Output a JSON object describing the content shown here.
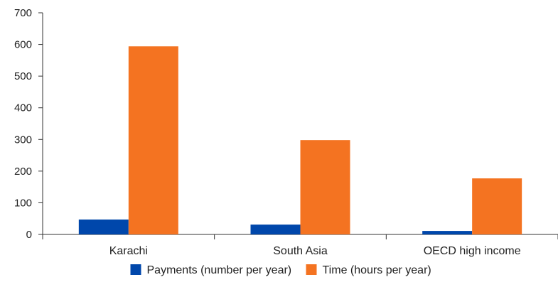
{
  "chart_data": {
    "type": "bar",
    "title": "",
    "xlabel": "",
    "ylabel": "",
    "categories": [
      "Karachi",
      "South Asia",
      "OECD high income"
    ],
    "series": [
      {
        "name": "Payments (number per year)",
        "color": "#0047AB",
        "values": [
          47,
          31,
          11
        ]
      },
      {
        "name": "Time (hours per year)",
        "color": "#F47321",
        "values": [
          594,
          298,
          177
        ]
      }
    ],
    "ylim": [
      0,
      700
    ],
    "yticks": [
      0,
      100,
      200,
      300,
      400,
      500,
      600,
      700
    ],
    "grid": false,
    "legend_position": "bottom"
  }
}
